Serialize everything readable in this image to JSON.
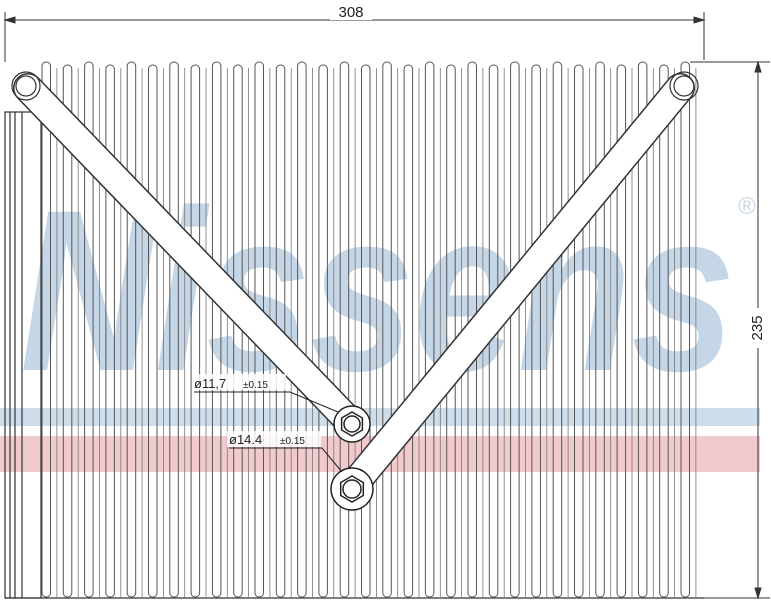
{
  "watermark": {
    "brand": "Nissens",
    "registered_mark": "®",
    "brand_color": "#c5d7e6",
    "band_color": "#f0c4c8"
  },
  "dimensions": {
    "width_label": "308",
    "height_label": "235"
  },
  "annotations": {
    "inlet": {
      "diameter": "ø11,7",
      "tolerance": "±0.15"
    },
    "outlet": {
      "diameter": "ø14.4",
      "tolerance": "±0.15"
    }
  },
  "colors": {
    "line": "#333333",
    "fin": "#555555"
  }
}
